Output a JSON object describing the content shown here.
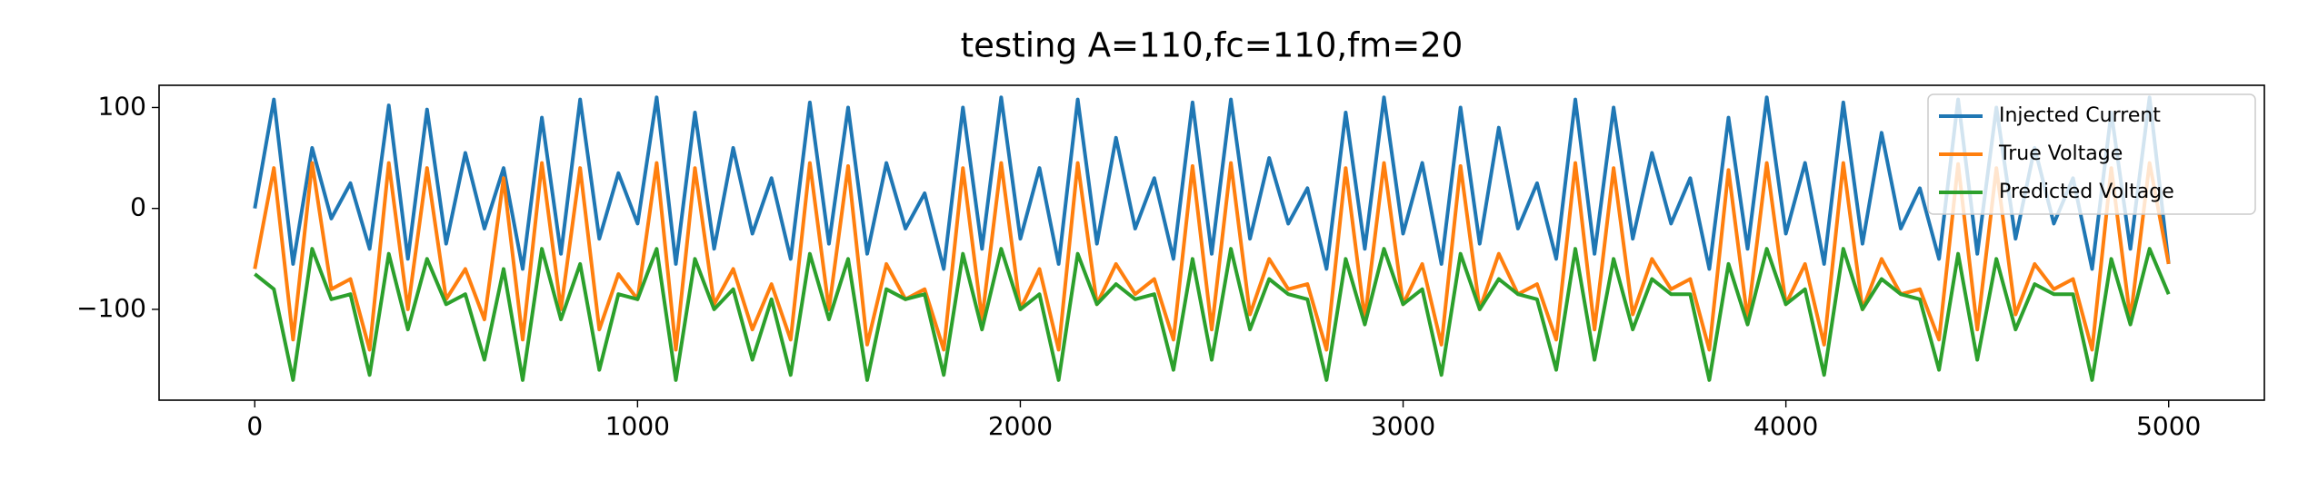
{
  "chart_data": {
    "type": "line",
    "title": "testing A=110,fc=110,fm=20",
    "x": [
      0,
      50,
      100,
      150,
      200,
      250,
      300,
      350,
      400,
      450,
      500,
      550,
      600,
      650,
      700,
      750,
      800,
      850,
      900,
      950,
      1000,
      1050,
      1100,
      1150,
      1200,
      1250,
      1300,
      1350,
      1400,
      1450,
      1500,
      1550,
      1600,
      1650,
      1700,
      1750,
      1800,
      1850,
      1900,
      1950,
      2000,
      2050,
      2100,
      2150,
      2200,
      2250,
      2300,
      2350,
      2400,
      2450,
      2500,
      2550,
      2600,
      2650,
      2700,
      2750,
      2800,
      2850,
      2900,
      2950,
      3000,
      3050,
      3100,
      3150,
      3200,
      3250,
      3300,
      3350,
      3400,
      3450,
      3500,
      3550,
      3600,
      3650,
      3700,
      3750,
      3800,
      3850,
      3900,
      3950,
      4000,
      4050,
      4100,
      4150,
      4200,
      4250,
      4300,
      4350,
      4400,
      4450,
      4500,
      4550,
      4600,
      4650,
      4700,
      4750,
      4800,
      4850,
      4900,
      4950,
      5000
    ],
    "series": [
      {
        "name": "Injected Current",
        "color": "#1f77b4",
        "values": [
          0,
          108,
          -55,
          60,
          -10,
          25,
          -40,
          102,
          -50,
          98,
          -35,
          55,
          -20,
          40,
          -60,
          90,
          -45,
          108,
          -30,
          35,
          -15,
          110,
          -55,
          95,
          -40,
          60,
          -25,
          30,
          -50,
          105,
          -35,
          100,
          -45,
          45,
          -20,
          15,
          -60,
          100,
          -40,
          110,
          -30,
          40,
          -55,
          108,
          -35,
          70,
          -20,
          30,
          -50,
          105,
          -45,
          108,
          -30,
          50,
          -15,
          20,
          -60,
          95,
          -40,
          110,
          -25,
          45,
          -55,
          100,
          -35,
          80,
          -20,
          25,
          -50,
          108,
          -45,
          100,
          -30,
          55,
          -15,
          30,
          -60,
          90,
          -40,
          110,
          -25,
          45,
          -55,
          105,
          -35,
          75,
          -20,
          20,
          -50,
          108,
          -45,
          100,
          -30,
          60,
          -15,
          30,
          -60,
          95,
          -40,
          110,
          -55
        ]
      },
      {
        "name": "True Voltage",
        "color": "#ff7f0e",
        "values": [
          -60,
          40,
          -130,
          45,
          -80,
          -70,
          -140,
          45,
          -100,
          40,
          -90,
          -60,
          -110,
          30,
          -130,
          45,
          -100,
          40,
          -120,
          -65,
          -90,
          45,
          -140,
          40,
          -95,
          -60,
          -120,
          -75,
          -130,
          45,
          -100,
          42,
          -135,
          -55,
          -90,
          -80,
          -140,
          40,
          -110,
          45,
          -100,
          -60,
          -140,
          45,
          -95,
          -55,
          -85,
          -70,
          -130,
          42,
          -120,
          45,
          -105,
          -50,
          -80,
          -75,
          -140,
          40,
          -110,
          45,
          -95,
          -55,
          -135,
          42,
          -100,
          -45,
          -85,
          -75,
          -130,
          45,
          -120,
          40,
          -105,
          -50,
          -80,
          -70,
          -140,
          38,
          -110,
          45,
          -95,
          -55,
          -135,
          45,
          -100,
          -50,
          -85,
          -80,
          -130,
          44,
          -120,
          40,
          -105,
          -55,
          -80,
          -70,
          -140,
          40,
          -110,
          45,
          -55
        ]
      },
      {
        "name": "Predicted Voltage",
        "color": "#2ca02c",
        "values": [
          -65,
          -80,
          -170,
          -40,
          -90,
          -85,
          -165,
          -45,
          -120,
          -50,
          -95,
          -85,
          -150,
          -60,
          -170,
          -40,
          -110,
          -55,
          -160,
          -85,
          -90,
          -40,
          -170,
          -50,
          -100,
          -80,
          -150,
          -90,
          -165,
          -45,
          -110,
          -50,
          -170,
          -80,
          -90,
          -85,
          -165,
          -45,
          -120,
          -40,
          -100,
          -85,
          -170,
          -45,
          -95,
          -75,
          -90,
          -85,
          -160,
          -50,
          -150,
          -40,
          -120,
          -70,
          -85,
          -90,
          -170,
          -50,
          -115,
          -40,
          -95,
          -80,
          -165,
          -45,
          -100,
          -70,
          -85,
          -90,
          -160,
          -40,
          -150,
          -50,
          -120,
          -70,
          -85,
          -85,
          -170,
          -55,
          -115,
          -40,
          -95,
          -80,
          -165,
          -40,
          -100,
          -70,
          -85,
          -90,
          -160,
          -45,
          -150,
          -50,
          -120,
          -75,
          -85,
          -85,
          -170,
          -50,
          -115,
          -40,
          -85
        ]
      }
    ],
    "xlim": [
      -250,
      5250
    ],
    "ylim": [
      -190,
      122
    ],
    "xticks": [
      0,
      1000,
      2000,
      3000,
      4000,
      5000
    ],
    "yticks": [
      {
        "value": -100,
        "label": "−100"
      },
      0,
      100
    ],
    "legend": "upper right"
  }
}
